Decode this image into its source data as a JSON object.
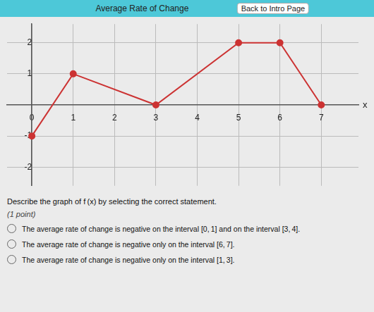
{
  "chart_data": {
    "type": "line",
    "title": "Average Rate of Change",
    "subtitle": "Back to Intro Page",
    "xlabel": "x",
    "x": [
      0,
      1,
      3,
      5,
      6,
      7
    ],
    "values": [
      -1,
      1,
      0,
      2,
      2,
      0
    ],
    "color": "#cc3333",
    "marker": "circle",
    "xlim": [
      -0.6,
      7.9
    ],
    "ylim": [
      -2.6,
      2.6
    ],
    "xticks": [
      0,
      1,
      2,
      3,
      4,
      5,
      6,
      7
    ],
    "yticks": [
      -2,
      -1,
      1,
      2
    ],
    "grid": true,
    "annotations": [
      "Describe the graph of f (x) by selecting the correct statement.",
      "(1 point)",
      "The average rate of change is negative on the interval [0, 1] and on the interval [3, 4].",
      "The average rate of change is negative only on the interval [6, 7].",
      "The average rate of change is negative only on the interval [1, 3]."
    ]
  }
}
